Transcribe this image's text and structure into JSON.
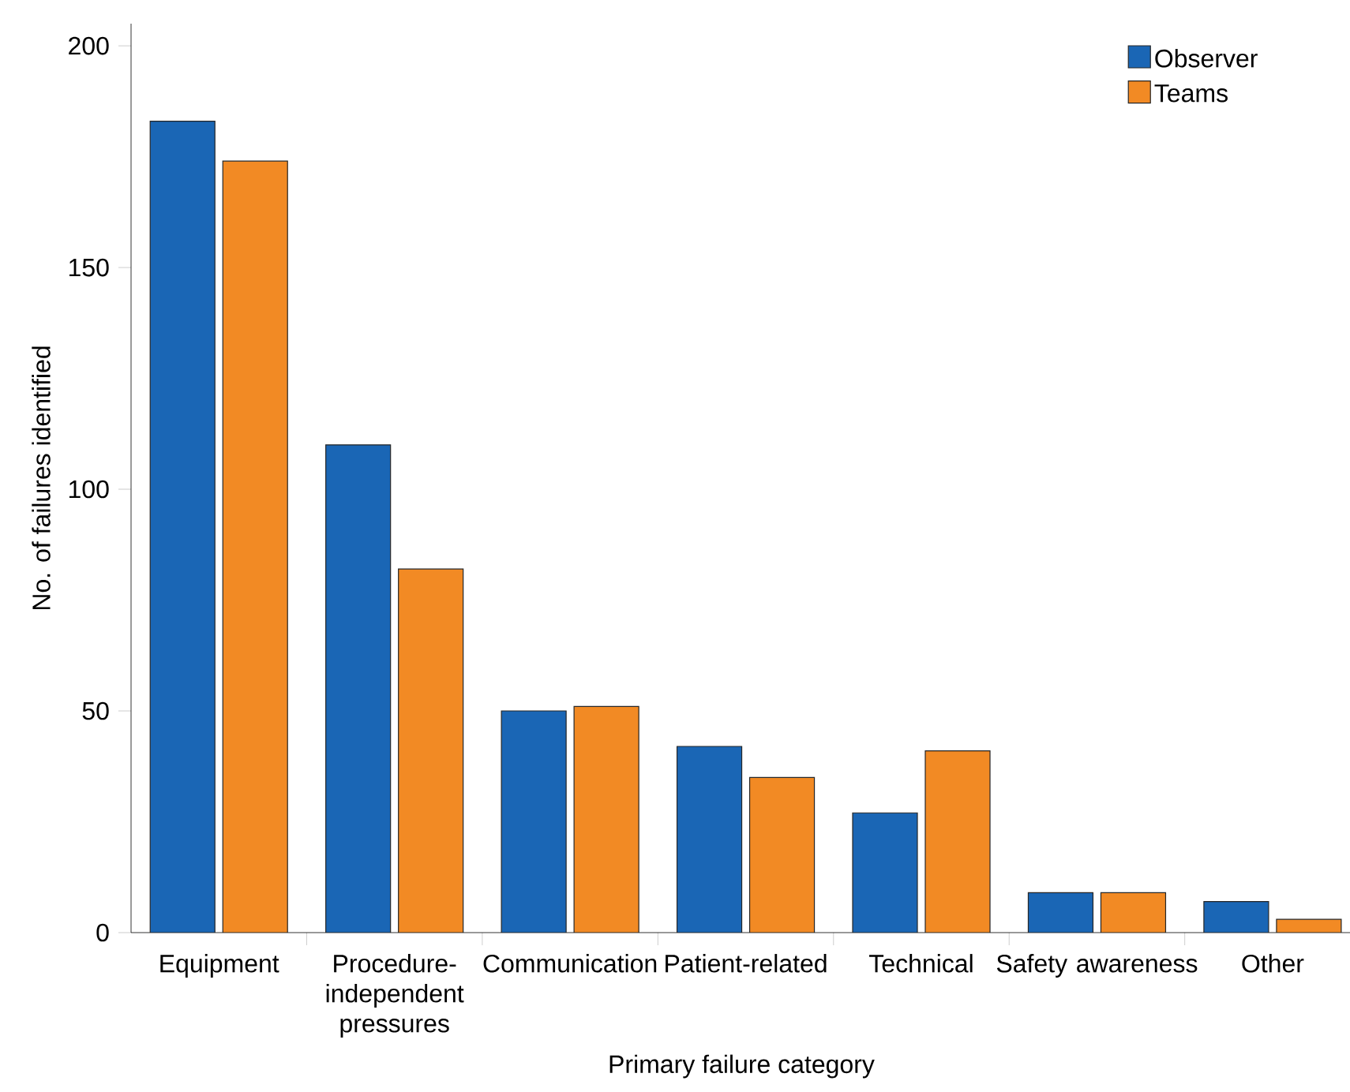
{
  "chart_data": {
    "type": "bar",
    "xlabel": "Primary failure category",
    "ylabel": "No. of failures identified",
    "categories": [
      "Equipment",
      "Procedure-independent pressures",
      "Communication",
      "Patient-related",
      "Technical",
      "Safety awareness",
      "Other"
    ],
    "series": [
      {
        "name": "Observer",
        "color": "#1a66b5",
        "values": [
          183,
          110,
          50,
          42,
          27,
          9,
          7
        ]
      },
      {
        "name": "Teams",
        "color": "#f28a24",
        "values": [
          174,
          82,
          51,
          35,
          41,
          9,
          3
        ]
      }
    ],
    "ylim": [
      0,
      205
    ],
    "yticks": [
      0,
      50,
      100,
      150,
      200
    ],
    "legend": "top right"
  }
}
